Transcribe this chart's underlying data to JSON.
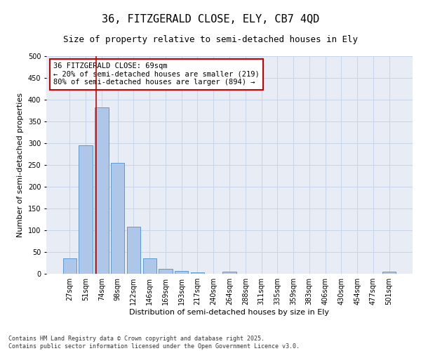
{
  "title": "36, FITZGERALD CLOSE, ELY, CB7 4QD",
  "subtitle": "Size of property relative to semi-detached houses in Ely",
  "xlabel": "Distribution of semi-detached houses by size in Ely",
  "ylabel": "Number of semi-detached properties",
  "bar_labels": [
    "27sqm",
    "51sqm",
    "74sqm",
    "98sqm",
    "122sqm",
    "146sqm",
    "169sqm",
    "193sqm",
    "217sqm",
    "240sqm",
    "264sqm",
    "288sqm",
    "311sqm",
    "335sqm",
    "359sqm",
    "383sqm",
    "406sqm",
    "430sqm",
    "454sqm",
    "477sqm",
    "501sqm"
  ],
  "bar_values": [
    35,
    295,
    383,
    255,
    108,
    35,
    11,
    6,
    4,
    0,
    5,
    0,
    0,
    0,
    0,
    0,
    0,
    0,
    0,
    0,
    5
  ],
  "bar_color": "#aec6e8",
  "bar_edge_color": "#5b9bd5",
  "vline_x": 1.65,
  "vline_color": "#cc0000",
  "annotation_text": "36 FITZGERALD CLOSE: 69sqm\n← 20% of semi-detached houses are smaller (219)\n80% of semi-detached houses are larger (894) →",
  "annotation_box_color": "#ffffff",
  "annotation_box_edge_color": "#cc0000",
  "ylim": [
    0,
    500
  ],
  "yticks": [
    0,
    50,
    100,
    150,
    200,
    250,
    300,
    350,
    400,
    450,
    500
  ],
  "grid_color": "#c8d4e8",
  "background_color": "#e8edf5",
  "footer_text": "Contains HM Land Registry data © Crown copyright and database right 2025.\nContains public sector information licensed under the Open Government Licence v3.0.",
  "title_fontsize": 11,
  "subtitle_fontsize": 9,
  "axis_label_fontsize": 8,
  "tick_fontsize": 7,
  "annotation_fontsize": 7.5,
  "footer_fontsize": 6
}
